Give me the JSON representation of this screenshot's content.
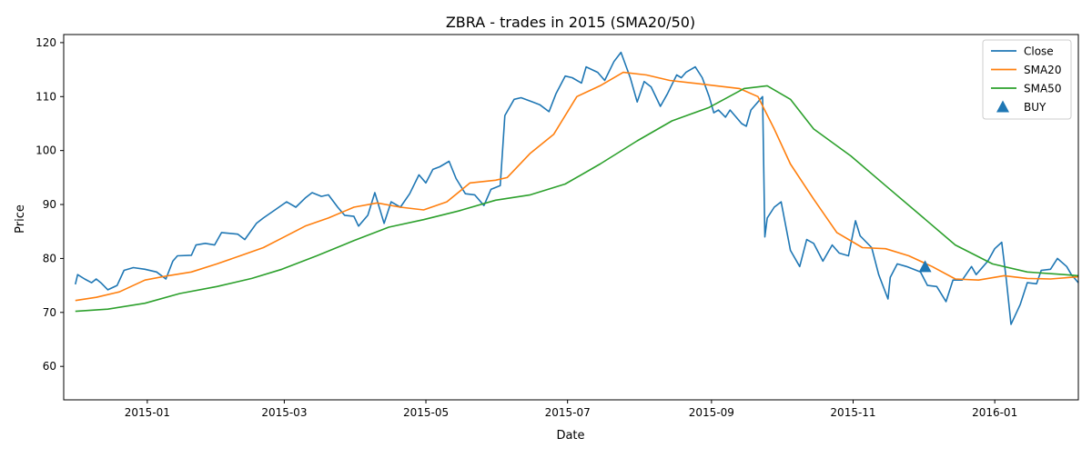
{
  "chart_data": {
    "type": "line",
    "title": "ZBRA - trades in 2015 (SMA20/50)",
    "xlabel": "Date",
    "ylabel": "Price",
    "xlim": [
      "2014-11-26",
      "2016-02-06"
    ],
    "ylim": [
      53.8,
      121.5
    ],
    "x_ticks": [
      {
        "date": "2015-01-01",
        "label": "2015-01"
      },
      {
        "date": "2015-03-01",
        "label": "2015-03"
      },
      {
        "date": "2015-05-01",
        "label": "2015-05"
      },
      {
        "date": "2015-07-01",
        "label": "2015-07"
      },
      {
        "date": "2015-09-01",
        "label": "2015-09"
      },
      {
        "date": "2015-11-01",
        "label": "2015-11"
      },
      {
        "date": "2016-01-01",
        "label": "2016-01"
      }
    ],
    "y_ticks": [
      60,
      70,
      80,
      90,
      100,
      110,
      120
    ],
    "grid": false,
    "legend_position": "top-right",
    "series": [
      {
        "name": "Close",
        "color": "#1f77b4",
        "points": [
          [
            "2014-12-01",
            75.2
          ],
          [
            "2014-12-02",
            77.0
          ],
          [
            "2014-12-05",
            76.2
          ],
          [
            "2014-12-08",
            75.5
          ],
          [
            "2014-12-10",
            76.2
          ],
          [
            "2014-12-12",
            75.5
          ],
          [
            "2014-12-15",
            74.2
          ],
          [
            "2014-12-19",
            75.0
          ],
          [
            "2014-12-22",
            77.8
          ],
          [
            "2014-12-26",
            78.3
          ],
          [
            "2014-12-31",
            78.0
          ],
          [
            "2015-01-05",
            77.5
          ],
          [
            "2015-01-09",
            76.2
          ],
          [
            "2015-01-12",
            79.5
          ],
          [
            "2015-01-14",
            80.5
          ],
          [
            "2015-01-20",
            80.6
          ],
          [
            "2015-01-22",
            82.5
          ],
          [
            "2015-01-26",
            82.8
          ],
          [
            "2015-01-30",
            82.5
          ],
          [
            "2015-02-02",
            84.8
          ],
          [
            "2015-02-09",
            84.5
          ],
          [
            "2015-02-12",
            83.5
          ],
          [
            "2015-02-17",
            86.5
          ],
          [
            "2015-02-20",
            87.5
          ],
          [
            "2015-02-25",
            89.0
          ],
          [
            "2015-03-02",
            90.5
          ],
          [
            "2015-03-06",
            89.5
          ],
          [
            "2015-03-10",
            91.2
          ],
          [
            "2015-03-13",
            92.2
          ],
          [
            "2015-03-17",
            91.5
          ],
          [
            "2015-03-20",
            91.8
          ],
          [
            "2015-03-24",
            89.5
          ],
          [
            "2015-03-27",
            88.0
          ],
          [
            "2015-03-31",
            87.8
          ],
          [
            "2015-04-02",
            86.0
          ],
          [
            "2015-04-06",
            88.0
          ],
          [
            "2015-04-09",
            92.2
          ],
          [
            "2015-04-13",
            86.5
          ],
          [
            "2015-04-16",
            90.5
          ],
          [
            "2015-04-20",
            89.5
          ],
          [
            "2015-04-24",
            92.0
          ],
          [
            "2015-04-28",
            95.5
          ],
          [
            "2015-05-01",
            94.0
          ],
          [
            "2015-05-04",
            96.5
          ],
          [
            "2015-05-07",
            97.0
          ],
          [
            "2015-05-11",
            98.0
          ],
          [
            "2015-05-14",
            94.8
          ],
          [
            "2015-05-18",
            92.0
          ],
          [
            "2015-05-22",
            91.8
          ],
          [
            "2015-05-26",
            89.8
          ],
          [
            "2015-05-29",
            92.8
          ],
          [
            "2015-06-02",
            93.5
          ],
          [
            "2015-06-04",
            106.5
          ],
          [
            "2015-06-08",
            109.5
          ],
          [
            "2015-06-11",
            109.8
          ],
          [
            "2015-06-16",
            109.0
          ],
          [
            "2015-06-19",
            108.5
          ],
          [
            "2015-06-23",
            107.2
          ],
          [
            "2015-06-26",
            110.5
          ],
          [
            "2015-06-30",
            113.8
          ],
          [
            "2015-07-03",
            113.5
          ],
          [
            "2015-07-07",
            112.5
          ],
          [
            "2015-07-09",
            115.5
          ],
          [
            "2015-07-14",
            114.5
          ],
          [
            "2015-07-17",
            113.0
          ],
          [
            "2015-07-21",
            116.5
          ],
          [
            "2015-07-24",
            118.2
          ],
          [
            "2015-07-28",
            113.5
          ],
          [
            "2015-07-31",
            109.0
          ],
          [
            "2015-08-03",
            112.8
          ],
          [
            "2015-08-06",
            111.8
          ],
          [
            "2015-08-10",
            108.2
          ],
          [
            "2015-08-13",
            110.5
          ],
          [
            "2015-08-17",
            114.0
          ],
          [
            "2015-08-19",
            113.5
          ],
          [
            "2015-08-21",
            114.5
          ],
          [
            "2015-08-25",
            115.5
          ],
          [
            "2015-08-28",
            113.5
          ],
          [
            "2015-08-31",
            110.0
          ],
          [
            "2015-09-02",
            107.0
          ],
          [
            "2015-09-04",
            107.5
          ],
          [
            "2015-09-07",
            106.2
          ],
          [
            "2015-09-09",
            107.5
          ],
          [
            "2015-09-14",
            105.0
          ],
          [
            "2015-09-16",
            104.5
          ],
          [
            "2015-09-18",
            107.5
          ],
          [
            "2015-09-23",
            110.0
          ],
          [
            "2015-09-24",
            84.0
          ],
          [
            "2015-09-25",
            87.5
          ],
          [
            "2015-09-28",
            89.5
          ],
          [
            "2015-10-01",
            90.5
          ],
          [
            "2015-10-05",
            81.5
          ],
          [
            "2015-10-09",
            78.5
          ],
          [
            "2015-10-12",
            83.5
          ],
          [
            "2015-10-15",
            82.8
          ],
          [
            "2015-10-19",
            79.5
          ],
          [
            "2015-10-23",
            82.5
          ],
          [
            "2015-10-26",
            81.0
          ],
          [
            "2015-10-30",
            80.5
          ],
          [
            "2015-11-02",
            87.0
          ],
          [
            "2015-11-04",
            84.2
          ],
          [
            "2015-11-09",
            82.0
          ],
          [
            "2015-11-12",
            77.0
          ],
          [
            "2015-11-16",
            72.5
          ],
          [
            "2015-11-17",
            76.5
          ],
          [
            "2015-11-20",
            79.0
          ],
          [
            "2015-11-24",
            78.5
          ],
          [
            "2015-11-30",
            77.5
          ],
          [
            "2015-12-03",
            75.0
          ],
          [
            "2015-12-07",
            74.8
          ],
          [
            "2015-12-11",
            72.0
          ],
          [
            "2015-12-14",
            76.0
          ],
          [
            "2015-12-18",
            76.0
          ],
          [
            "2015-12-22",
            78.5
          ],
          [
            "2015-12-24",
            77.0
          ],
          [
            "2015-12-29",
            79.5
          ],
          [
            "2016-01-01",
            81.8
          ],
          [
            "2016-01-04",
            83.0
          ],
          [
            "2016-01-06",
            76.0
          ],
          [
            "2016-01-08",
            67.8
          ],
          [
            "2016-01-12",
            71.5
          ],
          [
            "2016-01-15",
            75.5
          ],
          [
            "2016-01-19",
            75.3
          ],
          [
            "2016-01-21",
            77.8
          ],
          [
            "2016-01-25",
            78.0
          ],
          [
            "2016-01-28",
            80.0
          ],
          [
            "2016-02-01",
            78.5
          ],
          [
            "2016-02-03",
            77.0
          ],
          [
            "2016-02-06",
            75.5
          ]
        ]
      },
      {
        "name": "SMA20",
        "color": "#ff7f0e",
        "points": [
          [
            "2014-12-01",
            72.2
          ],
          [
            "2014-12-10",
            72.8
          ],
          [
            "2014-12-20",
            73.8
          ],
          [
            "2014-12-31",
            76.0
          ],
          [
            "2015-01-10",
            76.8
          ],
          [
            "2015-01-20",
            77.5
          ],
          [
            "2015-01-31",
            79.0
          ],
          [
            "2015-02-10",
            80.5
          ],
          [
            "2015-02-20",
            82.0
          ],
          [
            "2015-03-01",
            84.0
          ],
          [
            "2015-03-10",
            86.0
          ],
          [
            "2015-03-20",
            87.5
          ],
          [
            "2015-03-31",
            89.5
          ],
          [
            "2015-04-10",
            90.3
          ],
          [
            "2015-04-20",
            89.5
          ],
          [
            "2015-04-30",
            89.0
          ],
          [
            "2015-05-10",
            90.5
          ],
          [
            "2015-05-20",
            94.0
          ],
          [
            "2015-05-31",
            94.5
          ],
          [
            "2015-06-05",
            95.0
          ],
          [
            "2015-06-15",
            99.5
          ],
          [
            "2015-06-25",
            103.0
          ],
          [
            "2015-07-05",
            110.0
          ],
          [
            "2015-07-15",
            112.0
          ],
          [
            "2015-07-25",
            114.5
          ],
          [
            "2015-08-04",
            114.0
          ],
          [
            "2015-08-14",
            113.0
          ],
          [
            "2015-08-24",
            112.5
          ],
          [
            "2015-09-03",
            112.0
          ],
          [
            "2015-09-13",
            111.5
          ],
          [
            "2015-09-21",
            110.0
          ],
          [
            "2015-09-28",
            104.0
          ],
          [
            "2015-10-05",
            97.5
          ],
          [
            "2015-10-15",
            91.0
          ],
          [
            "2015-10-25",
            84.8
          ],
          [
            "2015-11-05",
            82.0
          ],
          [
            "2015-11-15",
            81.8
          ],
          [
            "2015-11-25",
            80.5
          ],
          [
            "2015-12-05",
            78.5
          ],
          [
            "2015-12-15",
            76.2
          ],
          [
            "2015-12-25",
            76.0
          ],
          [
            "2016-01-05",
            76.8
          ],
          [
            "2016-01-15",
            76.3
          ],
          [
            "2016-01-25",
            76.2
          ],
          [
            "2016-02-06",
            76.6
          ]
        ]
      },
      {
        "name": "SMA50",
        "color": "#2ca02c",
        "points": [
          [
            "2014-12-01",
            70.2
          ],
          [
            "2014-12-15",
            70.6
          ],
          [
            "2014-12-31",
            71.7
          ],
          [
            "2015-01-15",
            73.5
          ],
          [
            "2015-01-31",
            74.8
          ],
          [
            "2015-02-15",
            76.3
          ],
          [
            "2015-02-28",
            78.0
          ],
          [
            "2015-03-15",
            80.5
          ],
          [
            "2015-03-31",
            83.3
          ],
          [
            "2015-04-15",
            85.8
          ],
          [
            "2015-04-30",
            87.2
          ],
          [
            "2015-05-15",
            88.8
          ],
          [
            "2015-05-31",
            90.8
          ],
          [
            "2015-06-15",
            91.8
          ],
          [
            "2015-06-30",
            93.8
          ],
          [
            "2015-07-15",
            97.5
          ],
          [
            "2015-07-31",
            101.8
          ],
          [
            "2015-08-15",
            105.5
          ],
          [
            "2015-08-31",
            108.0
          ],
          [
            "2015-09-15",
            111.5
          ],
          [
            "2015-09-25",
            112.0
          ],
          [
            "2015-10-05",
            109.5
          ],
          [
            "2015-10-15",
            104.0
          ],
          [
            "2015-10-31",
            99.0
          ],
          [
            "2015-11-15",
            93.5
          ],
          [
            "2015-11-30",
            88.0
          ],
          [
            "2015-12-15",
            82.5
          ],
          [
            "2015-12-31",
            79.0
          ],
          [
            "2016-01-15",
            77.5
          ],
          [
            "2016-01-31",
            77.0
          ],
          [
            "2016-02-06",
            76.8
          ]
        ]
      }
    ],
    "markers": [
      {
        "name": "BUY",
        "color": "#1f77b4",
        "shape": "triangle-up",
        "points": [
          [
            "2015-12-02",
            78.5
          ]
        ]
      }
    ]
  }
}
